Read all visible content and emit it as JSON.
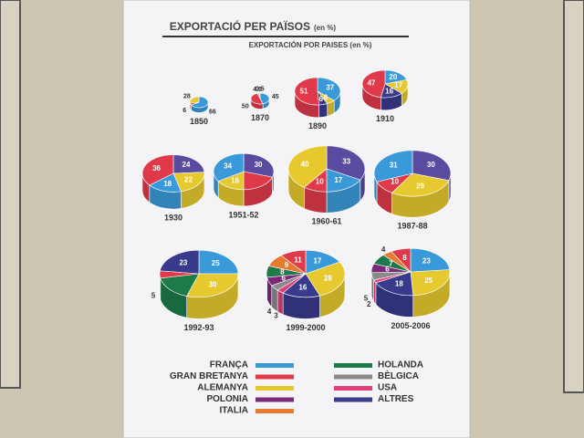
{
  "header": {
    "title": "EXPORTACIÓ PER PAÏSOS",
    "title_unit": "(en %)",
    "subtitle": "EXPORTACIÓN POR PAISES (en %)"
  },
  "legend": [
    {
      "name": "FRANÇA",
      "color": "#3a9ad9"
    },
    {
      "name": "GRAN BRETANYA",
      "color": "#e03a4a"
    },
    {
      "name": "ALEMANYA",
      "color": "#e6c92e"
    },
    {
      "name": "POLONIA",
      "color": "#7a2a78"
    },
    {
      "name": "ITALIA",
      "color": "#e87a30"
    },
    {
      "name": "HOLANDA",
      "color": "#1f7a4a"
    },
    {
      "name": "BÈLGICA",
      "color": "#8a8a8a"
    },
    {
      "name": "USA",
      "color": "#e0407a"
    },
    {
      "name": "ALTRES",
      "color": "#3a3a8c"
    }
  ],
  "chart_data": [
    {
      "type": "pie",
      "title": "1850",
      "values": [
        66,
        6,
        28
      ],
      "colors": [
        "#3a9ad9",
        "#e03a4a",
        "#e6c92e"
      ]
    },
    {
      "type": "pie",
      "title": "1870",
      "values": [
        45,
        50,
        4.5,
        0.5
      ],
      "colors": [
        "#3a9ad9",
        "#e03a4a",
        "#e6c92e",
        "#7a2a78"
      ]
    },
    {
      "type": "pie",
      "title": "1890",
      "values": [
        37,
        6,
        6,
        51
      ],
      "colors": [
        "#3a9ad9",
        "#e6c92e",
        "#3a3a8c",
        "#e03a4a"
      ]
    },
    {
      "type": "pie",
      "title": "1910",
      "values": [
        20,
        17,
        16,
        47
      ],
      "colors": [
        "#3a9ad9",
        "#e6c92e",
        "#3a3a8c",
        "#e03a4a"
      ]
    },
    {
      "type": "pie",
      "title": "1930",
      "values": [
        24,
        22,
        18,
        36
      ],
      "colors": [
        "#5a4aa0",
        "#e6c92e",
        "#3a9ad9",
        "#e03a4a"
      ]
    },
    {
      "type": "pie",
      "title": "1951-52",
      "values": [
        30,
        20,
        16,
        34
      ],
      "value_labels": [
        "30",
        null,
        "16",
        "34"
      ],
      "colors": [
        "#5a4aa0",
        "#e03a4a",
        "#e6c92e",
        "#3a9ad9"
      ]
    },
    {
      "type": "pie",
      "title": "1960-61",
      "values": [
        33,
        17,
        10,
        40
      ],
      "colors": [
        "#5a4aa0",
        "#3a9ad9",
        "#e03a4a",
        "#e6c92e"
      ]
    },
    {
      "type": "pie",
      "title": "1987-88",
      "values": [
        30,
        29,
        10,
        31
      ],
      "colors": [
        "#5a4aa0",
        "#e6c92e",
        "#e03a4a",
        "#3a9ad9"
      ]
    },
    {
      "type": "pie",
      "title": "1992-93",
      "values": [
        25,
        30,
        17,
        5,
        23
      ],
      "value_labels": [
        "25",
        "30",
        null,
        "5",
        "23"
      ],
      "colors": [
        "#3a9ad9",
        "#e6c92e",
        "#1f7a4a",
        "#e03a4a",
        "#3a3a8c"
      ]
    },
    {
      "type": "pie",
      "title": "1999-2000",
      "values": [
        17,
        28,
        16,
        3,
        4,
        6,
        8,
        9,
        11
      ],
      "colors": [
        "#3a9ad9",
        "#e6c92e",
        "#3a3a8c",
        "#e0407a",
        "#8a8a8a",
        "#7a2a78",
        "#1f7a4a",
        "#e87a30",
        "#e03a4a"
      ]
    },
    {
      "type": "pie",
      "title": "2005-2006",
      "values": [
        23,
        25,
        18,
        2,
        5,
        6,
        7,
        4,
        8
      ],
      "colors": [
        "#3a9ad9",
        "#e6c92e",
        "#3a3a8c",
        "#e0407a",
        "#8a8a8a",
        "#7a2a78",
        "#1f7a4a",
        "#e87a30",
        "#e03a4a"
      ]
    }
  ]
}
